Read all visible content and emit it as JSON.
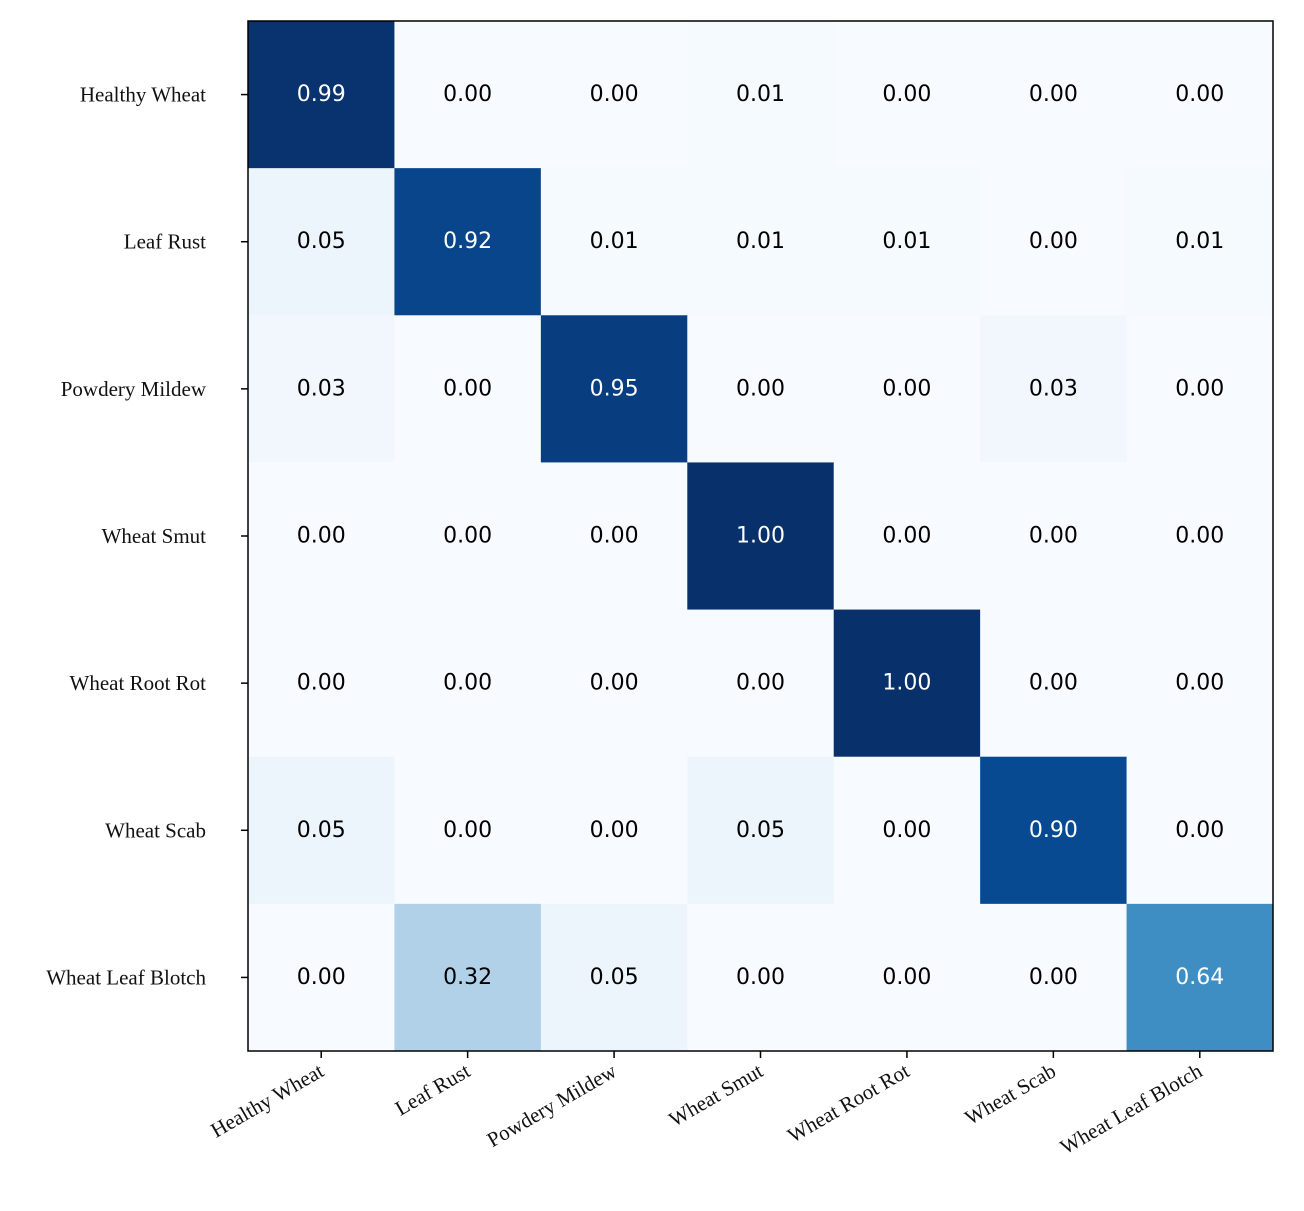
{
  "chart_data": {
    "type": "heatmap",
    "title": "",
    "xlabel": "",
    "ylabel": "",
    "row_labels": [
      "Healthy Wheat",
      "Leaf Rust",
      "Powdery Mildew",
      "Wheat Smut",
      "Wheat Root Rot",
      "Wheat Scab",
      "Wheat Leaf Blotch"
    ],
    "col_labels": [
      "Healthy Wheat",
      "Leaf Rust",
      "Powdery Mildew",
      "Wheat Smut",
      "Wheat Root Rot",
      "Wheat Scab",
      "Wheat Leaf Blotch"
    ],
    "values": [
      [
        0.99,
        0.0,
        0.0,
        0.01,
        0.0,
        0.0,
        0.0
      ],
      [
        0.05,
        0.92,
        0.01,
        0.01,
        0.01,
        0.0,
        0.01
      ],
      [
        0.03,
        0.0,
        0.95,
        0.0,
        0.0,
        0.03,
        0.0
      ],
      [
        0.0,
        0.0,
        0.0,
        1.0,
        0.0,
        0.0,
        0.0
      ],
      [
        0.0,
        0.0,
        0.0,
        0.0,
        1.0,
        0.0,
        0.0
      ],
      [
        0.05,
        0.0,
        0.0,
        0.05,
        0.0,
        0.9,
        0.0
      ],
      [
        0.0,
        0.32,
        0.05,
        0.0,
        0.0,
        0.0,
        0.64
      ]
    ],
    "value_range": [
      0,
      1
    ],
    "colormap": "Blues",
    "grid": false,
    "legend": "none"
  }
}
